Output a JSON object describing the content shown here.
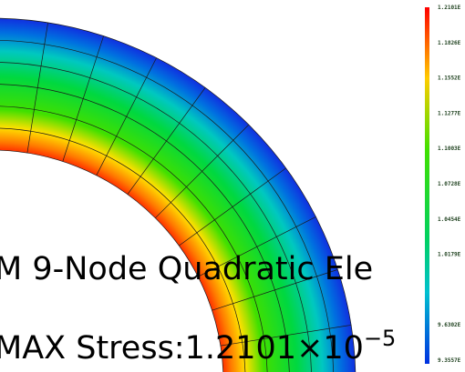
{
  "colorbar": {
    "labels": [
      "1.2101E",
      "1.1826E",
      "1.1552E",
      "1.1277E",
      "1.1003E",
      "1.0728E",
      "1.0454E",
      "1.0179E",
      null,
      "9.6302E",
      "9.3557E"
    ]
  },
  "overlay": {
    "line1": "M 9-Node Quadratic Ele",
    "line2": "MAX Stress:1.2101×10",
    "exponent": "−5"
  }
}
